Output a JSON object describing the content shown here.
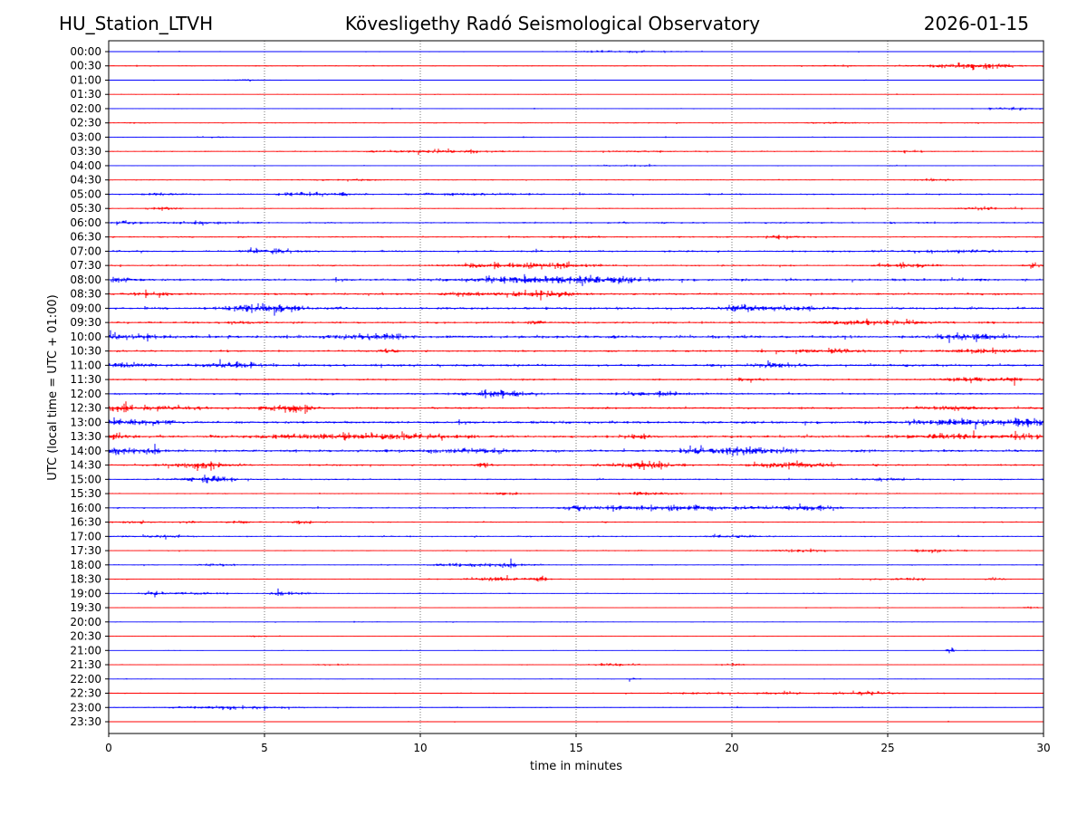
{
  "header": {
    "station": "HU_Station_LTVH",
    "observatory": "Kövesligethy Radó Seismological Observatory",
    "date": "2026-01-15"
  },
  "chart_data": {
    "type": "line",
    "title": "Kövesligethy Radó Seismological Observatory",
    "xlabel": "time in minutes",
    "ylabel": "UTC (local time = UTC + 01:00)",
    "xlim": [
      0,
      30
    ],
    "x_ticks": [
      "0",
      "5",
      "10",
      "15",
      "20",
      "25",
      "30"
    ],
    "x_tick_values": [
      0,
      5,
      10,
      15,
      20,
      25,
      30
    ],
    "grid": "vertical dotted at x ticks",
    "series_colors": [
      "#0000ff",
      "#ff0000"
    ],
    "rows": [
      {
        "label": "00:00",
        "base": 0.35,
        "events": [
          [
            16,
            0.8,
            1.0
          ],
          [
            17.8,
            0.6,
            0.6
          ]
        ]
      },
      {
        "label": "00:30",
        "base": 0.45,
        "events": [
          [
            27,
            0.9,
            1.2
          ],
          [
            28.3,
            0.8,
            1.6
          ],
          [
            23.5,
            0.4,
            0.6
          ]
        ]
      },
      {
        "label": "01:00",
        "base": 0.35,
        "events": [
          [
            4.2,
            0.5,
            0.6
          ]
        ]
      },
      {
        "label": "01:30",
        "base": 0.35,
        "events": []
      },
      {
        "label": "02:00",
        "base": 0.35,
        "events": [
          [
            29.0,
            0.6,
            1.2
          ]
        ]
      },
      {
        "label": "02:30",
        "base": 0.45,
        "events": [
          [
            23.2,
            0.6,
            0.7
          ],
          [
            0.8,
            0.3,
            0.5
          ]
        ]
      },
      {
        "label": "03:00",
        "base": 0.4,
        "events": [
          [
            3.5,
            0.4,
            0.5
          ]
        ]
      },
      {
        "label": "03:30",
        "base": 0.55,
        "events": [
          [
            10.5,
            1.2,
            1.4
          ],
          [
            17,
            0.6,
            0.8
          ],
          [
            25.5,
            0.4,
            0.8
          ]
        ]
      },
      {
        "label": "04:00",
        "base": 0.35,
        "events": [
          [
            16.5,
            0.7,
            0.6
          ],
          [
            25.2,
            0.3,
            0.5
          ]
        ]
      },
      {
        "label": "04:30",
        "base": 0.5,
        "events": [
          [
            8.0,
            0.6,
            0.7
          ],
          [
            26.5,
            0.5,
            0.8
          ]
        ]
      },
      {
        "label": "05:00",
        "base": 0.7,
        "events": [
          [
            1.8,
            0.5,
            1.0
          ],
          [
            6.2,
            0.6,
            1.4
          ],
          [
            11.5,
            1.2,
            1.1
          ],
          [
            7.5,
            0.4,
            0.9
          ]
        ]
      },
      {
        "label": "05:30",
        "base": 0.5,
        "events": [
          [
            1.8,
            0.4,
            1.0
          ],
          [
            28.0,
            0.6,
            1.2
          ]
        ]
      },
      {
        "label": "06:00",
        "base": 0.75,
        "events": [
          [
            0.6,
            0.5,
            1.2
          ],
          [
            3.0,
            0.7,
            1.0
          ]
        ]
      },
      {
        "label": "06:30",
        "base": 0.65,
        "events": [
          [
            15.0,
            0.5,
            0.8
          ],
          [
            21.5,
            0.6,
            1.1
          ]
        ]
      },
      {
        "label": "07:00",
        "base": 0.85,
        "events": [
          [
            5.2,
            0.6,
            2.2
          ],
          [
            27.0,
            1.5,
            0.9
          ]
        ]
      },
      {
        "label": "07:30",
        "base": 0.7,
        "events": [
          [
            12.5,
            1.0,
            2.0
          ],
          [
            14.5,
            0.8,
            1.4
          ],
          [
            25.5,
            0.7,
            1.8
          ],
          [
            29.8,
            0.3,
            1.8
          ]
        ]
      },
      {
        "label": "08:00",
        "base": 1.1,
        "events": [
          [
            0.4,
            0.4,
            1.8
          ],
          [
            13.5,
            1.2,
            2.6
          ],
          [
            15.8,
            1.0,
            2.4
          ]
        ]
      },
      {
        "label": "08:30",
        "base": 0.9,
        "events": [
          [
            13.8,
            0.9,
            2.8
          ],
          [
            11.5,
            0.5,
            1.6
          ],
          [
            1.5,
            0.6,
            1.4
          ]
        ]
      },
      {
        "label": "09:00",
        "base": 1.1,
        "events": [
          [
            5.1,
            0.8,
            3.6
          ],
          [
            21.5,
            1.0,
            1.8
          ],
          [
            20.2,
            0.3,
            2.2
          ]
        ]
      },
      {
        "label": "09:30",
        "base": 0.9,
        "events": [
          [
            24.5,
            1.2,
            2.0
          ],
          [
            13.8,
            0.2,
            1.8
          ],
          [
            4.3,
            0.2,
            1.6
          ]
        ]
      },
      {
        "label": "10:00",
        "base": 1.3,
        "events": [
          [
            8.5,
            0.6,
            2.6
          ],
          [
            27.7,
            0.6,
            2.8
          ],
          [
            0.5,
            0.8,
            1.8
          ]
        ]
      },
      {
        "label": "10:30",
        "base": 0.9,
        "events": [
          [
            23.0,
            1.0,
            1.4
          ],
          [
            28.5,
            1.0,
            1.6
          ],
          [
            9.0,
            0.3,
            1.2
          ]
        ]
      },
      {
        "label": "11:00",
        "base": 1.1,
        "events": [
          [
            0.7,
            0.6,
            2.0
          ],
          [
            3.8,
            0.6,
            2.4
          ],
          [
            21.3,
            0.5,
            1.8
          ]
        ]
      },
      {
        "label": "11:30",
        "base": 0.8,
        "events": [
          [
            28.0,
            1.0,
            1.6
          ],
          [
            29.0,
            0.15,
            2.2
          ],
          [
            20.5,
            0.3,
            1.2
          ]
        ]
      },
      {
        "label": "12:00",
        "base": 0.9,
        "events": [
          [
            12.5,
            0.7,
            2.8
          ],
          [
            17.5,
            0.8,
            1.4
          ]
        ]
      },
      {
        "label": "12:30",
        "base": 0.9,
        "events": [
          [
            0.2,
            0.4,
            3.0
          ],
          [
            5.8,
            0.6,
            3.0
          ],
          [
            1.8,
            1.0,
            1.4
          ],
          [
            27.0,
            1.0,
            1.2
          ]
        ]
      },
      {
        "label": "13:00",
        "base": 1.2,
        "events": [
          [
            0.5,
            1.0,
            1.8
          ],
          [
            27.5,
            1.2,
            2.4
          ],
          [
            29.7,
            0.6,
            2.6
          ]
        ]
      },
      {
        "label": "13:30",
        "base": 1.1,
        "events": [
          [
            8.0,
            2.0,
            2.6
          ],
          [
            27.0,
            1.0,
            2.0
          ],
          [
            17.0,
            0.3,
            1.8
          ],
          [
            29.5,
            0.5,
            2.2
          ],
          [
            0.2,
            0.3,
            2.2
          ]
        ]
      },
      {
        "label": "14:00",
        "base": 1.1,
        "events": [
          [
            0.5,
            0.7,
            2.8
          ],
          [
            20.2,
            1.2,
            3.0
          ],
          [
            11.5,
            1.2,
            1.6
          ]
        ]
      },
      {
        "label": "14:30",
        "base": 0.9,
        "events": [
          [
            3.0,
            0.6,
            3.0
          ],
          [
            17.3,
            0.7,
            3.0
          ],
          [
            22.0,
            0.8,
            2.8
          ],
          [
            12.0,
            0.2,
            1.4
          ]
        ]
      },
      {
        "label": "15:00",
        "base": 0.7,
        "events": [
          [
            3.2,
            0.6,
            2.8
          ],
          [
            25.0,
            0.5,
            1.2
          ]
        ]
      },
      {
        "label": "15:30",
        "base": 0.55,
        "events": [
          [
            17.3,
            0.6,
            1.6
          ],
          [
            12.5,
            0.5,
            1.0
          ]
        ]
      },
      {
        "label": "16:00",
        "base": 0.7,
        "events": [
          [
            15.0,
            0.3,
            2.4
          ],
          [
            18.8,
            1.2,
            2.2
          ],
          [
            22.3,
            0.8,
            2.0
          ],
          [
            16.5,
            0.8,
            1.4
          ]
        ]
      },
      {
        "label": "16:30",
        "base": 0.6,
        "events": [
          [
            0.8,
            0.5,
            1.2
          ],
          [
            2.7,
            0.2,
            1.4
          ],
          [
            4.2,
            0.3,
            1.4
          ],
          [
            6.2,
            0.3,
            1.2
          ]
        ]
      },
      {
        "label": "17:00",
        "base": 0.6,
        "events": [
          [
            1.5,
            0.6,
            1.1
          ],
          [
            20.0,
            0.8,
            1.0
          ]
        ]
      },
      {
        "label": "17:30",
        "base": 0.5,
        "events": [
          [
            22.0,
            0.8,
            1.1
          ],
          [
            26.5,
            0.7,
            1.1
          ]
        ]
      },
      {
        "label": "18:00",
        "base": 0.5,
        "events": [
          [
            12.3,
            0.8,
            1.8
          ],
          [
            3.5,
            0.4,
            1.0
          ],
          [
            10.8,
            0.3,
            1.2
          ]
        ]
      },
      {
        "label": "18:30",
        "base": 0.5,
        "events": [
          [
            12.5,
            0.8,
            1.6
          ],
          [
            13.9,
            0.15,
            2.2
          ],
          [
            28.5,
            0.2,
            1.4
          ],
          [
            25.5,
            0.6,
            1.0
          ]
        ]
      },
      {
        "label": "19:00",
        "base": 0.45,
        "events": [
          [
            1.5,
            0.3,
            1.4
          ],
          [
            2.8,
            0.8,
            1.0
          ],
          [
            5.8,
            0.5,
            1.2
          ]
        ]
      },
      {
        "label": "19:30",
        "base": 0.35,
        "events": [
          [
            29.5,
            0.4,
            0.6
          ]
        ]
      },
      {
        "label": "20:00",
        "base": 0.35,
        "events": []
      },
      {
        "label": "20:30",
        "base": 0.35,
        "events": [
          [
            4.9,
            0.4,
            0.7
          ]
        ]
      },
      {
        "label": "21:00",
        "base": 0.3,
        "events": [
          [
            27.0,
            0.08,
            3.4
          ]
        ]
      },
      {
        "label": "21:30",
        "base": 0.4,
        "events": [
          [
            16.2,
            0.6,
            1.1
          ],
          [
            20.0,
            0.3,
            1.0
          ],
          [
            7.0,
            0.3,
            0.7
          ]
        ]
      },
      {
        "label": "22:00",
        "base": 0.35,
        "events": [
          [
            16.8,
            0.1,
            1.4
          ]
        ]
      },
      {
        "label": "22:30",
        "base": 0.5,
        "events": [
          [
            24.5,
            0.7,
            1.6
          ],
          [
            21.5,
            1.0,
            0.9
          ],
          [
            18.5,
            0.8,
            0.7
          ]
        ]
      },
      {
        "label": "23:00",
        "base": 0.45,
        "events": [
          [
            3.8,
            1.2,
            1.4
          ]
        ]
      },
      {
        "label": "23:30",
        "base": 0.35,
        "events": []
      }
    ]
  }
}
